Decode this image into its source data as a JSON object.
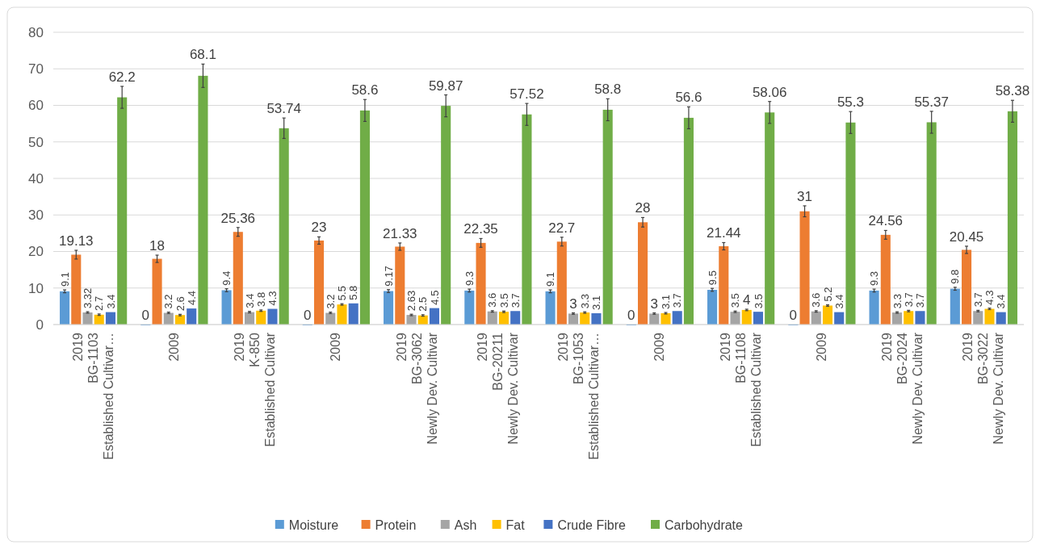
{
  "chart_data": {
    "type": "bar",
    "categories": [
      "2019\nBG-1103\nEstablished Cultivar…",
      "2009",
      "2019\nK-850\nEstablished Cultivar",
      "2009",
      "2019\nBG-3062\nNewly Dev. Cultivar",
      "2019\nBG-20211\nNewly Dev. Cultivar",
      "2019\nBG-1053\nEstablished Cultivar…",
      "2009",
      "2019\nBG-1108\nEstablished Cultivar",
      "2009",
      "2019\nBG-2024\nNewly Dev. Cultivar",
      "2019\nBG-3022\nNewly Dev. Cultivar"
    ],
    "series": [
      {
        "name": "Moisture",
        "color": "#5b9bd5",
        "values": [
          9.1,
          0,
          9.4,
          0,
          9.17,
          9.3,
          9.1,
          0,
          9.5,
          0,
          9.3,
          9.8
        ],
        "errors": [
          0.4,
          null,
          0.4,
          null,
          0.4,
          0.4,
          0.4,
          null,
          0.4,
          null,
          0.4,
          0.4
        ]
      },
      {
        "name": "Protein",
        "color": "#ed7d31",
        "values": [
          19.13,
          18,
          25.36,
          23,
          21.33,
          22.35,
          22.7,
          28,
          21.44,
          31,
          24.56,
          20.45
        ],
        "errors": [
          1.2,
          1,
          1.2,
          1,
          1,
          1.2,
          1.2,
          1.3,
          1,
          1.5,
          1.2,
          1
        ]
      },
      {
        "name": "Ash",
        "color": "#a5a5a5",
        "values": [
          3.32,
          3.2,
          3.4,
          3.2,
          2.63,
          3.6,
          3,
          3,
          3.5,
          3.6,
          3.3,
          3.7
        ],
        "errors": [
          0.2,
          0.2,
          0.2,
          0.2,
          0.2,
          0.2,
          0.2,
          0.2,
          0.2,
          0.2,
          0.2,
          0.2
        ]
      },
      {
        "name": "Fat",
        "color": "#ffc000",
        "values": [
          2.7,
          2.6,
          3.8,
          5.5,
          2.5,
          3.5,
          3.3,
          3.1,
          4,
          5.2,
          3.7,
          4.3
        ],
        "errors": [
          0.2,
          0.2,
          0.2,
          0.2,
          0.2,
          0.2,
          0.2,
          0.2,
          0.2,
          0.2,
          0.2,
          0.2
        ]
      },
      {
        "name": "Crude Fibre",
        "color": "#4472c4",
        "values": [
          3.4,
          4.4,
          4.3,
          5.8,
          4.5,
          3.7,
          3.1,
          3.7,
          3.5,
          3.4,
          3.7,
          3.4
        ]
      },
      {
        "name": "Carbohydrate",
        "color": "#70ad47",
        "values": [
          62.2,
          68.1,
          53.74,
          58.6,
          59.87,
          57.52,
          58.8,
          56.6,
          58.06,
          55.3,
          55.37,
          58.38
        ],
        "errors": [
          3,
          3.2,
          2.8,
          3,
          3,
          3,
          3,
          3,
          3,
          3,
          3,
          3
        ]
      }
    ],
    "ylim": [
      0,
      80
    ],
    "yticks": [
      0,
      10,
      20,
      30,
      40,
      50,
      60,
      70,
      80
    ],
    "grid": "y",
    "legend": "bottom",
    "data_labels": true
  }
}
